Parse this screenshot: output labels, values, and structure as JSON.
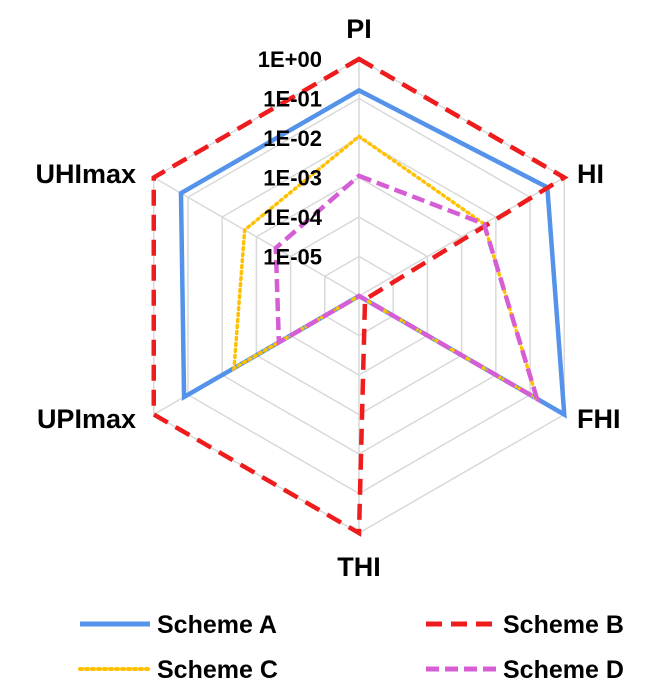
{
  "chart_data": {
    "type": "radar",
    "axes": [
      "PI",
      "HI",
      "FHI",
      "THI",
      "UPImax",
      "UHImax"
    ],
    "scale": "log",
    "range": [
      1e-06,
      1
    ],
    "tick_labels": [
      "1E-05",
      "1E-04",
      "1E-03",
      "1E-02",
      "1E-01",
      "1E+00"
    ],
    "grid": true,
    "legend_position": "bottom",
    "series": [
      {
        "name": "Scheme A",
        "color": "#5592EA",
        "dash": "solid",
        "values": [
          0.16,
          0.32,
          1.0,
          1e-06,
          0.13,
          0.16
        ]
      },
      {
        "name": "Scheme B",
        "color": "#EE1C1C",
        "dash": "dashed",
        "values": [
          1.0,
          1.0,
          1.5e-06,
          1.0,
          1.0,
          1.0
        ]
      },
      {
        "name": "Scheme C",
        "color": "#FFC000",
        "dash": "dotted",
        "values": [
          0.011,
          0.0045,
          0.16,
          1e-06,
          0.0045,
          0.0022
        ]
      },
      {
        "name": "Scheme D",
        "color": "#D65ED4",
        "dash": "dashed",
        "values": [
          0.0011,
          0.0045,
          0.16,
          1e-06,
          0.00022,
          0.00027
        ]
      }
    ]
  }
}
